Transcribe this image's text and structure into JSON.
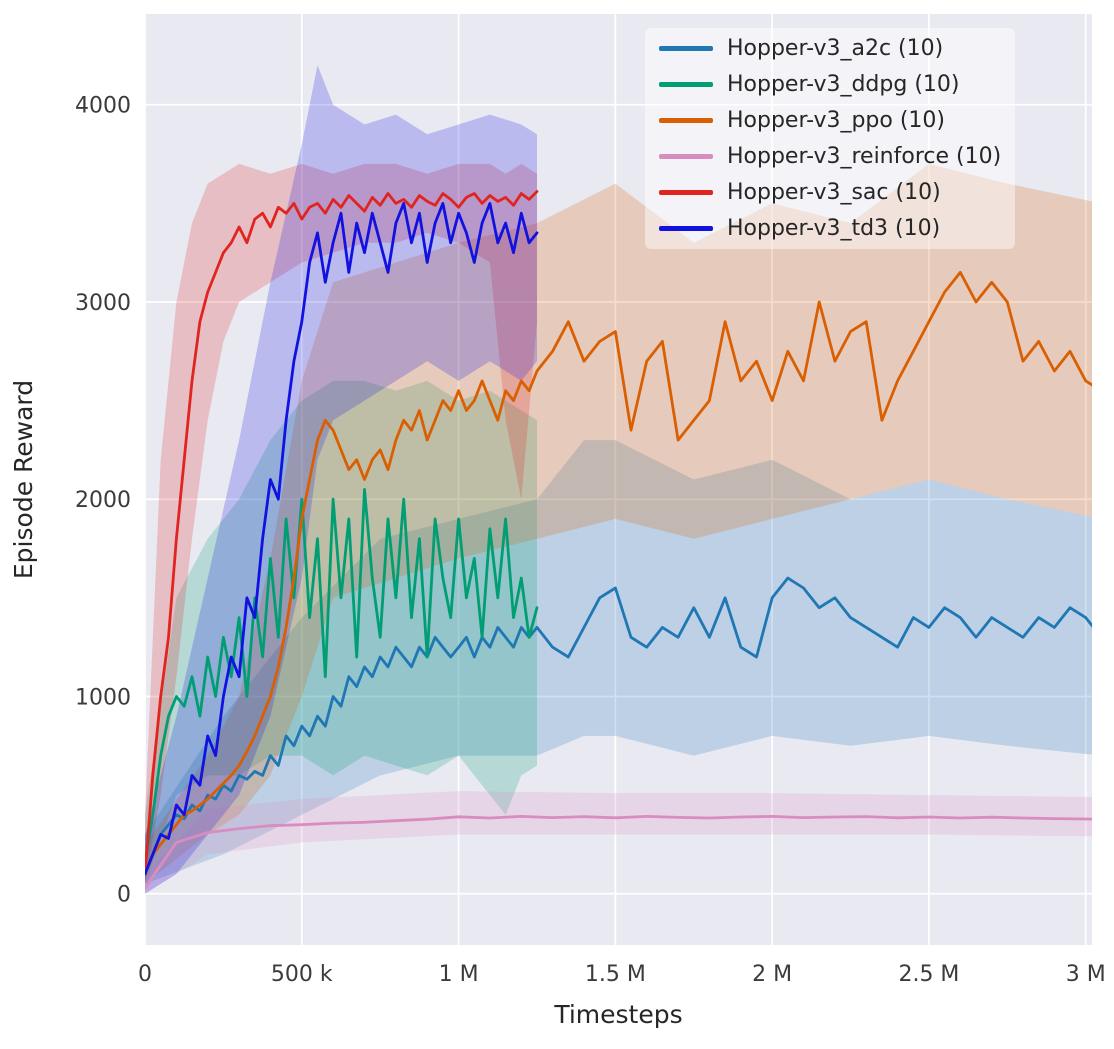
{
  "figure": {
    "bg": "#ffffff",
    "plot_bg": "#e9e9f2",
    "grid_color": "#ffffff",
    "tick_color": "#3b3b3b",
    "label_color": "#262626"
  },
  "chart_data": {
    "type": "line",
    "title": "",
    "xlabel": "Timesteps",
    "ylabel": "Episode Reward",
    "x_unit": "timesteps (thousands)",
    "xlim": [
      0,
      3020
    ],
    "ylim": [
      -260,
      4460
    ],
    "grid": true,
    "legend_position": "upper right",
    "band_opacity": 0.22,
    "x_ticks": [
      {
        "v": 0,
        "label": "0"
      },
      {
        "v": 500,
        "label": "500 k"
      },
      {
        "v": 1000,
        "label": "1 M"
      },
      {
        "v": 1500,
        "label": "1.5 M"
      },
      {
        "v": 2000,
        "label": "2 M"
      },
      {
        "v": 2500,
        "label": "2.5 M"
      },
      {
        "v": 3000,
        "label": "3 M"
      }
    ],
    "y_ticks": [
      {
        "v": 0,
        "label": "0"
      },
      {
        "v": 1000,
        "label": "1000"
      },
      {
        "v": 2000,
        "label": "2000"
      },
      {
        "v": 3000,
        "label": "3000"
      },
      {
        "v": 4000,
        "label": "4000"
      }
    ],
    "series": [
      {
        "key": "a2c",
        "label": "Hopper-v3_a2c (10)",
        "color": "#1f77b4",
        "x": [
          0,
          25,
          50,
          75,
          100,
          125,
          150,
          175,
          200,
          225,
          250,
          275,
          300,
          325,
          350,
          375,
          400,
          425,
          450,
          475,
          500,
          525,
          550,
          575,
          600,
          625,
          650,
          675,
          700,
          725,
          750,
          775,
          800,
          825,
          850,
          875,
          900,
          925,
          950,
          975,
          1000,
          1025,
          1050,
          1075,
          1100,
          1125,
          1150,
          1175,
          1200,
          1225,
          1250,
          1300,
          1350,
          1400,
          1450,
          1500,
          1550,
          1600,
          1650,
          1700,
          1750,
          1800,
          1850,
          1900,
          1950,
          2000,
          2050,
          2100,
          2150,
          2200,
          2250,
          2300,
          2350,
          2400,
          2450,
          2500,
          2550,
          2600,
          2650,
          2700,
          2750,
          2800,
          2850,
          2900,
          2950,
          3000,
          3050
        ],
        "y": [
          100,
          200,
          300,
          350,
          400,
          380,
          450,
          420,
          500,
          480,
          550,
          520,
          600,
          580,
          620,
          600,
          700,
          650,
          800,
          750,
          850,
          800,
          900,
          850,
          1000,
          950,
          1100,
          1050,
          1150,
          1100,
          1200,
          1150,
          1250,
          1200,
          1150,
          1250,
          1200,
          1300,
          1250,
          1200,
          1250,
          1300,
          1200,
          1300,
          1250,
          1350,
          1300,
          1250,
          1350,
          1300,
          1350,
          1250,
          1200,
          1350,
          1500,
          1550,
          1300,
          1250,
          1350,
          1300,
          1450,
          1300,
          1500,
          1250,
          1200,
          1500,
          1600,
          1550,
          1450,
          1500,
          1400,
          1350,
          1300,
          1250,
          1400,
          1350,
          1450,
          1400,
          1300,
          1400,
          1350,
          1300,
          1400,
          1350,
          1450,
          1400,
          1300
        ],
        "band": {
          "x": [
            0,
            250,
            500,
            750,
            1000,
            1250,
            1400,
            1500,
            1750,
            2000,
            2250,
            2500,
            2750,
            3050
          ],
          "lo": [
            50,
            200,
            400,
            600,
            700,
            700,
            800,
            800,
            700,
            800,
            750,
            800,
            750,
            700
          ],
          "hi": [
            300,
            900,
            1400,
            1800,
            1900,
            2000,
            2300,
            2300,
            2100,
            2200,
            2000,
            2100,
            2000,
            1900
          ]
        }
      },
      {
        "key": "ddpg",
        "label": "Hopper-v3_ddpg (10)",
        "color": "#029e73",
        "x": [
          0,
          25,
          50,
          75,
          100,
          125,
          150,
          175,
          200,
          225,
          250,
          275,
          300,
          325,
          350,
          375,
          400,
          425,
          450,
          475,
          500,
          525,
          550,
          575,
          600,
          625,
          650,
          675,
          700,
          725,
          750,
          775,
          800,
          825,
          850,
          875,
          900,
          925,
          950,
          975,
          1000,
          1025,
          1050,
          1075,
          1100,
          1125,
          1150,
          1175,
          1200,
          1225,
          1250
        ],
        "y": [
          150,
          400,
          700,
          900,
          1000,
          950,
          1100,
          900,
          1200,
          1000,
          1300,
          1100,
          1400,
          1000,
          1500,
          1200,
          1700,
          1300,
          1900,
          1500,
          2000,
          1400,
          1800,
          1100,
          2000,
          1500,
          1900,
          1200,
          2050,
          1600,
          1300,
          1900,
          1500,
          2000,
          1400,
          1800,
          1200,
          1900,
          1600,
          1400,
          1900,
          1500,
          1700,
          1300,
          1850,
          1500,
          1900,
          1400,
          1600,
          1300,
          1450
        ],
        "band": {
          "x": [
            0,
            100,
            200,
            300,
            400,
            500,
            600,
            700,
            800,
            900,
            1000,
            1100,
            1150,
            1200,
            1250
          ],
          "lo": [
            50,
            500,
            600,
            600,
            700,
            700,
            600,
            700,
            650,
            600,
            700,
            500,
            400,
            600,
            650
          ],
          "hi": [
            400,
            1500,
            1800,
            2000,
            2300,
            2500,
            2600,
            2600,
            2550,
            2600,
            2500,
            2550,
            2500,
            2450,
            2400
          ]
        }
      },
      {
        "key": "ppo",
        "label": "Hopper-v3_ppo (10)",
        "color": "#d95f02",
        "x": [
          0,
          25,
          50,
          75,
          100,
          125,
          150,
          175,
          200,
          225,
          250,
          275,
          300,
          325,
          350,
          375,
          400,
          425,
          450,
          475,
          500,
          525,
          550,
          575,
          600,
          625,
          650,
          675,
          700,
          725,
          750,
          775,
          800,
          825,
          850,
          875,
          900,
          925,
          950,
          975,
          1000,
          1025,
          1050,
          1075,
          1100,
          1125,
          1150,
          1175,
          1200,
          1225,
          1250,
          1300,
          1350,
          1400,
          1450,
          1500,
          1550,
          1600,
          1650,
          1700,
          1750,
          1800,
          1850,
          1900,
          1950,
          2000,
          2050,
          2100,
          2150,
          2200,
          2250,
          2300,
          2350,
          2400,
          2450,
          2500,
          2550,
          2600,
          2650,
          2700,
          2750,
          2800,
          2850,
          2900,
          2950,
          3000,
          3050
        ],
        "y": [
          100,
          200,
          250,
          300,
          350,
          400,
          420,
          450,
          480,
          520,
          560,
          600,
          650,
          720,
          800,
          900,
          1000,
          1150,
          1350,
          1600,
          1900,
          2100,
          2300,
          2400,
          2350,
          2250,
          2150,
          2200,
          2100,
          2200,
          2250,
          2150,
          2300,
          2400,
          2350,
          2450,
          2300,
          2400,
          2500,
          2450,
          2550,
          2450,
          2500,
          2600,
          2500,
          2400,
          2550,
          2500,
          2600,
          2550,
          2650,
          2750,
          2900,
          2700,
          2800,
          2850,
          2350,
          2700,
          2800,
          2300,
          2400,
          2500,
          2900,
          2600,
          2700,
          2500,
          2750,
          2600,
          3000,
          2700,
          2850,
          2900,
          2400,
          2600,
          2750,
          2900,
          3050,
          3150,
          3000,
          3100,
          3000,
          2700,
          2800,
          2650,
          2750,
          2600,
          2550
        ],
        "band": {
          "x": [
            0,
            200,
            300,
            400,
            500,
            600,
            800,
            1000,
            1250,
            1500,
            1750,
            2000,
            2250,
            2500,
            2750,
            3050
          ],
          "lo": [
            50,
            300,
            400,
            600,
            1000,
            1500,
            1600,
            1700,
            1800,
            1900,
            1800,
            1900,
            2000,
            2100,
            2000,
            1900
          ],
          "hi": [
            250,
            700,
            1000,
            1700,
            2600,
            3100,
            3200,
            3300,
            3400,
            3600,
            3300,
            3500,
            3400,
            3700,
            3600,
            3500
          ]
        }
      },
      {
        "key": "reinforce",
        "label": "Hopper-v3_reinforce (10)",
        "color": "#d98cc0",
        "x": [
          0,
          100,
          200,
          300,
          400,
          500,
          600,
          700,
          800,
          900,
          1000,
          1100,
          1200,
          1300,
          1400,
          1500,
          1600,
          1700,
          1800,
          1900,
          2000,
          2100,
          2200,
          2300,
          2400,
          2500,
          2600,
          2700,
          2800,
          2900,
          3000,
          3050
        ],
        "y": [
          30,
          260,
          310,
          330,
          345,
          350,
          358,
          362,
          370,
          378,
          390,
          384,
          392,
          386,
          391,
          385,
          392,
          387,
          384,
          389,
          392,
          386,
          389,
          391,
          385,
          389,
          384,
          388,
          384,
          381,
          379,
          377
        ],
        "band": {
          "x": [
            0,
            200,
            500,
            1000,
            1500,
            2000,
            2500,
            3050
          ],
          "lo": [
            0,
            200,
            260,
            300,
            300,
            300,
            300,
            290
          ],
          "hi": [
            100,
            430,
            480,
            520,
            510,
            510,
            500,
            490
          ]
        }
      },
      {
        "key": "sac",
        "label": "Hopper-v3_sac (10)",
        "color": "#e02420",
        "x": [
          0,
          25,
          50,
          75,
          100,
          125,
          150,
          175,
          200,
          225,
          250,
          275,
          300,
          325,
          350,
          375,
          400,
          425,
          450,
          475,
          500,
          525,
          550,
          575,
          600,
          625,
          650,
          675,
          700,
          725,
          750,
          775,
          800,
          825,
          850,
          875,
          900,
          925,
          950,
          975,
          1000,
          1025,
          1050,
          1075,
          1100,
          1125,
          1150,
          1175,
          1200,
          1225,
          1250
        ],
        "y": [
          100,
          600,
          1000,
          1300,
          1800,
          2200,
          2600,
          2900,
          3050,
          3150,
          3250,
          3300,
          3380,
          3300,
          3420,
          3450,
          3380,
          3480,
          3450,
          3500,
          3420,
          3480,
          3500,
          3450,
          3520,
          3480,
          3540,
          3500,
          3460,
          3530,
          3490,
          3550,
          3500,
          3520,
          3480,
          3540,
          3510,
          3490,
          3550,
          3520,
          3480,
          3530,
          3550,
          3500,
          3540,
          3510,
          3530,
          3490,
          3550,
          3520,
          3560
        ],
        "band": {
          "x": [
            0,
            50,
            100,
            150,
            200,
            250,
            300,
            400,
            500,
            600,
            700,
            800,
            900,
            1000,
            1100,
            1150,
            1200,
            1250
          ],
          "lo": [
            50,
            500,
            1100,
            1800,
            2400,
            2800,
            3000,
            3100,
            3200,
            3250,
            3300,
            3300,
            3350,
            3300,
            3200,
            2400,
            2000,
            2900
          ],
          "hi": [
            400,
            2200,
            3000,
            3400,
            3600,
            3650,
            3700,
            3650,
            3700,
            3650,
            3700,
            3700,
            3650,
            3700,
            3700,
            3650,
            3700,
            3650
          ]
        }
      },
      {
        "key": "td3",
        "label": "Hopper-v3_td3 (10)",
        "color": "#1212e0",
        "x": [
          0,
          25,
          50,
          75,
          100,
          125,
          150,
          175,
          200,
          225,
          250,
          275,
          300,
          325,
          350,
          375,
          400,
          425,
          450,
          475,
          500,
          525,
          550,
          575,
          600,
          625,
          650,
          675,
          700,
          725,
          750,
          775,
          800,
          825,
          850,
          875,
          900,
          925,
          950,
          975,
          1000,
          1025,
          1050,
          1075,
          1100,
          1125,
          1150,
          1175,
          1200,
          1225,
          1250
        ],
        "y": [
          100,
          200,
          300,
          280,
          450,
          400,
          600,
          550,
          800,
          700,
          1000,
          1200,
          1100,
          1500,
          1400,
          1800,
          2100,
          2000,
          2400,
          2700,
          2900,
          3200,
          3350,
          3100,
          3300,
          3450,
          3150,
          3400,
          3250,
          3450,
          3300,
          3150,
          3400,
          3500,
          3300,
          3450,
          3200,
          3400,
          3500,
          3300,
          3450,
          3350,
          3200,
          3400,
          3500,
          3300,
          3400,
          3250,
          3450,
          3300,
          3350
        ],
        "band": {
          "x": [
            0,
            100,
            200,
            300,
            400,
            500,
            550,
            600,
            700,
            800,
            900,
            1000,
            1100,
            1200,
            1250
          ],
          "lo": [
            0,
            100,
            300,
            500,
            900,
            1600,
            2200,
            2400,
            2500,
            2600,
            2700,
            2600,
            2700,
            2600,
            2700
          ],
          "hi": [
            300,
            900,
            1600,
            2300,
            3100,
            3800,
            4200,
            4000,
            3900,
            3950,
            3850,
            3900,
            3950,
            3900,
            3850
          ]
        }
      }
    ]
  }
}
